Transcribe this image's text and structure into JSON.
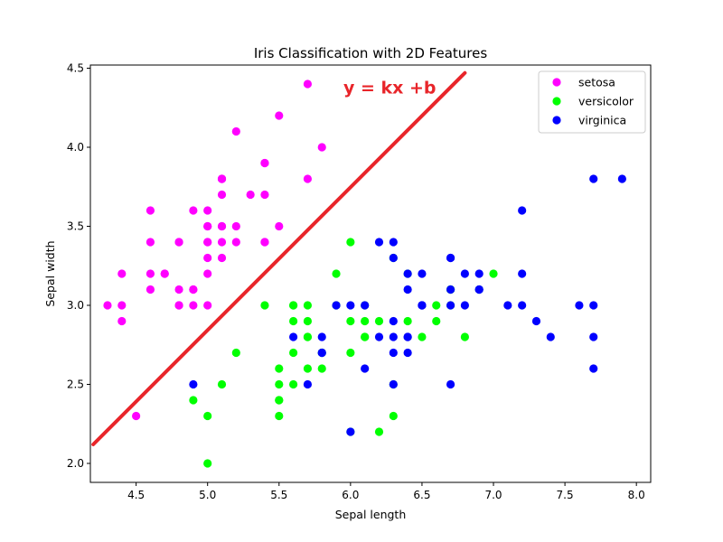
{
  "chart_data": {
    "type": "scatter",
    "title": "Iris Classification with 2D Features",
    "xlabel": "Sepal length",
    "ylabel": "Sepal width",
    "xlim": [
      4.18,
      8.1
    ],
    "ylim": [
      1.88,
      4.52
    ],
    "xticks": [
      4.5,
      5.0,
      5.5,
      6.0,
      6.5,
      7.0,
      7.5,
      8.0
    ],
    "xtick_labels": [
      "4.5",
      "5.0",
      "5.5",
      "6.0",
      "6.5",
      "7.0",
      "7.5",
      "8.0"
    ],
    "yticks": [
      2.0,
      2.5,
      3.0,
      3.5,
      4.0,
      4.5
    ],
    "ytick_labels": [
      "2.0",
      "2.5",
      "3.0",
      "3.5",
      "4.0",
      "4.5"
    ],
    "grid": false,
    "legend_position": "top-right",
    "series": [
      {
        "name": "setosa",
        "color": "#ff00ff",
        "points": [
          [
            5.1,
            3.5
          ],
          [
            4.9,
            3.0
          ],
          [
            4.7,
            3.2
          ],
          [
            4.6,
            3.1
          ],
          [
            5.0,
            3.6
          ],
          [
            5.4,
            3.9
          ],
          [
            4.6,
            3.4
          ],
          [
            5.0,
            3.4
          ],
          [
            4.4,
            2.9
          ],
          [
            4.9,
            3.1
          ],
          [
            5.4,
            3.7
          ],
          [
            4.8,
            3.4
          ],
          [
            4.8,
            3.0
          ],
          [
            4.3,
            3.0
          ],
          [
            5.8,
            4.0
          ],
          [
            5.7,
            4.4
          ],
          [
            5.4,
            3.9
          ],
          [
            5.1,
            3.5
          ],
          [
            5.7,
            3.8
          ],
          [
            5.1,
            3.8
          ],
          [
            5.4,
            3.4
          ],
          [
            5.1,
            3.7
          ],
          [
            4.6,
            3.6
          ],
          [
            5.1,
            3.3
          ],
          [
            4.8,
            3.4
          ],
          [
            5.0,
            3.0
          ],
          [
            5.0,
            3.4
          ],
          [
            5.2,
            3.5
          ],
          [
            5.2,
            3.4
          ],
          [
            4.7,
            3.2
          ],
          [
            4.8,
            3.1
          ],
          [
            5.4,
            3.4
          ],
          [
            5.2,
            4.1
          ],
          [
            5.5,
            4.2
          ],
          [
            4.9,
            3.1
          ],
          [
            5.0,
            3.2
          ],
          [
            5.5,
            3.5
          ],
          [
            4.9,
            3.6
          ],
          [
            4.4,
            3.0
          ],
          [
            5.1,
            3.4
          ],
          [
            5.0,
            3.5
          ],
          [
            4.5,
            2.3
          ],
          [
            4.4,
            3.2
          ],
          [
            5.0,
            3.5
          ],
          [
            5.1,
            3.8
          ],
          [
            4.8,
            3.0
          ],
          [
            5.1,
            3.8
          ],
          [
            4.6,
            3.2
          ],
          [
            5.3,
            3.7
          ],
          [
            5.0,
            3.3
          ]
        ]
      },
      {
        "name": "versicolor",
        "color": "#00ff00",
        "points": [
          [
            7.0,
            3.2
          ],
          [
            6.4,
            3.2
          ],
          [
            6.9,
            3.1
          ],
          [
            5.5,
            2.3
          ],
          [
            6.5,
            2.8
          ],
          [
            5.7,
            2.8
          ],
          [
            6.3,
            3.3
          ],
          [
            4.9,
            2.4
          ],
          [
            6.6,
            2.9
          ],
          [
            5.2,
            2.7
          ],
          [
            5.0,
            2.0
          ],
          [
            5.9,
            3.0
          ],
          [
            6.0,
            2.2
          ],
          [
            6.1,
            2.9
          ],
          [
            5.6,
            2.9
          ],
          [
            6.7,
            3.1
          ],
          [
            5.6,
            3.0
          ],
          [
            5.8,
            2.7
          ],
          [
            6.2,
            2.2
          ],
          [
            5.6,
            2.5
          ],
          [
            5.9,
            3.2
          ],
          [
            6.1,
            2.8
          ],
          [
            6.3,
            2.5
          ],
          [
            6.1,
            2.8
          ],
          [
            6.4,
            2.9
          ],
          [
            6.6,
            3.0
          ],
          [
            6.8,
            2.8
          ],
          [
            6.7,
            3.0
          ],
          [
            6.0,
            2.9
          ],
          [
            5.7,
            2.6
          ],
          [
            5.5,
            2.4
          ],
          [
            5.5,
            2.4
          ],
          [
            5.8,
            2.7
          ],
          [
            6.0,
            2.7
          ],
          [
            5.4,
            3.0
          ],
          [
            6.0,
            3.4
          ],
          [
            6.7,
            3.1
          ],
          [
            6.3,
            2.3
          ],
          [
            5.6,
            3.0
          ],
          [
            5.5,
            2.5
          ],
          [
            5.5,
            2.6
          ],
          [
            6.1,
            3.0
          ],
          [
            5.8,
            2.6
          ],
          [
            5.0,
            2.3
          ],
          [
            5.6,
            2.7
          ],
          [
            5.7,
            3.0
          ],
          [
            5.7,
            2.9
          ],
          [
            6.2,
            2.9
          ],
          [
            5.1,
            2.5
          ],
          [
            5.7,
            2.8
          ]
        ]
      },
      {
        "name": "virginica",
        "color": "#0000ff",
        "points": [
          [
            6.3,
            3.3
          ],
          [
            5.8,
            2.7
          ],
          [
            7.1,
            3.0
          ],
          [
            6.3,
            2.9
          ],
          [
            6.5,
            3.0
          ],
          [
            7.6,
            3.0
          ],
          [
            4.9,
            2.5
          ],
          [
            7.3,
            2.9
          ],
          [
            6.7,
            2.5
          ],
          [
            7.2,
            3.6
          ],
          [
            6.5,
            3.2
          ],
          [
            6.4,
            2.7
          ],
          [
            6.8,
            3.0
          ],
          [
            5.7,
            2.5
          ],
          [
            5.8,
            2.8
          ],
          [
            6.4,
            3.2
          ],
          [
            6.5,
            3.0
          ],
          [
            7.7,
            3.8
          ],
          [
            7.7,
            2.6
          ],
          [
            6.0,
            2.2
          ],
          [
            6.9,
            3.2
          ],
          [
            5.6,
            2.8
          ],
          [
            7.7,
            2.8
          ],
          [
            6.3,
            2.7
          ],
          [
            6.7,
            3.3
          ],
          [
            7.2,
            3.2
          ],
          [
            6.2,
            2.8
          ],
          [
            6.1,
            3.0
          ],
          [
            6.4,
            2.8
          ],
          [
            7.2,
            3.0
          ],
          [
            7.4,
            2.8
          ],
          [
            7.9,
            3.8
          ],
          [
            6.4,
            2.8
          ],
          [
            6.3,
            2.8
          ],
          [
            6.1,
            2.6
          ],
          [
            7.7,
            3.0
          ],
          [
            6.3,
            3.4
          ],
          [
            6.4,
            3.1
          ],
          [
            6.0,
            3.0
          ],
          [
            6.9,
            3.1
          ],
          [
            6.7,
            3.1
          ],
          [
            6.9,
            3.1
          ],
          [
            5.8,
            2.7
          ],
          [
            6.8,
            3.2
          ],
          [
            6.7,
            3.3
          ],
          [
            6.7,
            3.0
          ],
          [
            6.3,
            2.5
          ],
          [
            6.5,
            3.0
          ],
          [
            6.2,
            3.4
          ],
          [
            5.9,
            3.0
          ]
        ]
      }
    ],
    "line": {
      "color": "#e8252a",
      "points": [
        [
          4.2,
          2.12
        ],
        [
          6.8,
          4.47
        ]
      ]
    },
    "annotation": {
      "text": "y = kx +b",
      "x": 5.95,
      "y": 4.34,
      "color": "#e8252a"
    }
  }
}
